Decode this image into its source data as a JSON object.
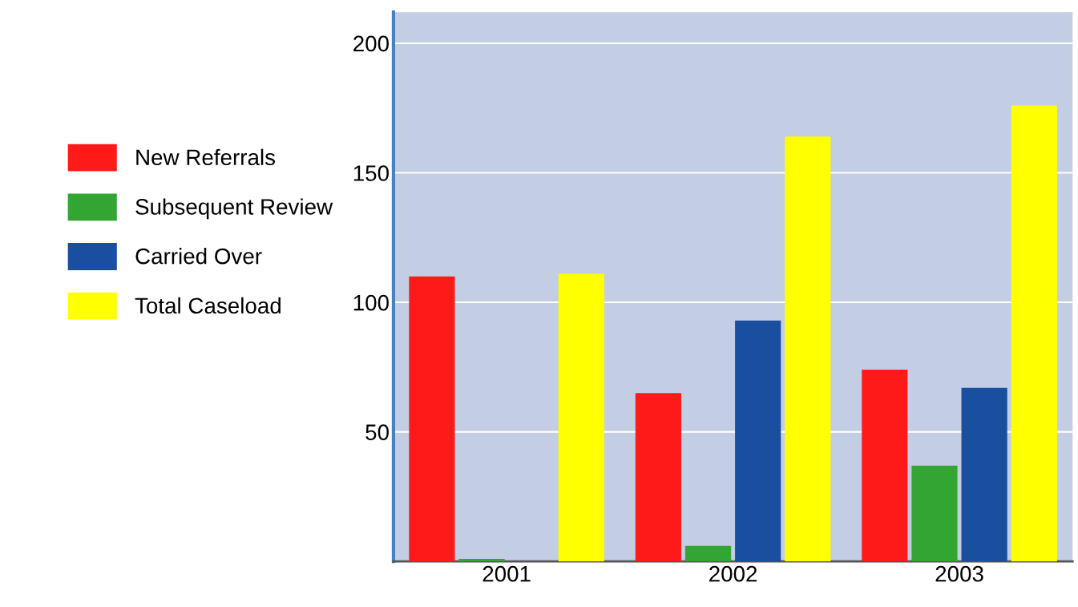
{
  "chart_data": {
    "type": "bar",
    "categories": [
      "2001",
      "2002",
      "2003"
    ],
    "series": [
      {
        "name": "New Referrals",
        "color": "#ff1a1a",
        "values": [
          110,
          65,
          74
        ]
      },
      {
        "name": "Subsequent Review",
        "color": "#33a532",
        "values": [
          1,
          6,
          37
        ]
      },
      {
        "name": "Carried Over",
        "color": "#1a4fa0",
        "values": [
          null,
          93,
          67
        ]
      },
      {
        "name": "Total Caseload",
        "color": "#ffff00",
        "values": [
          111,
          164,
          176
        ]
      }
    ],
    "ylim": [
      0,
      212
    ],
    "yticks": [
      50,
      100,
      150,
      200
    ],
    "grid": "y",
    "legend": "left"
  }
}
